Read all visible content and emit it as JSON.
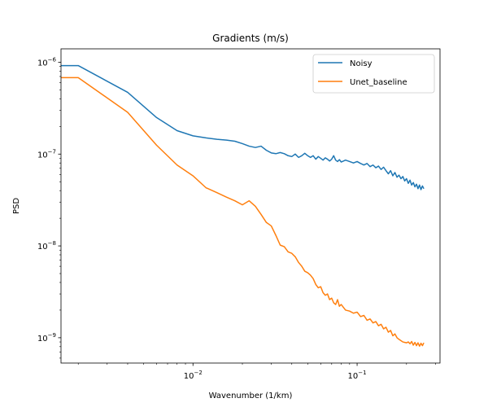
{
  "chart_data": {
    "type": "line",
    "title": "Gradients (m/s)",
    "xlabel": "Wavenumber (1/km)",
    "ylabel": "PSD",
    "xscale": "log",
    "yscale": "log",
    "xlim": [
      0.00157,
      0.32
    ],
    "ylim": [
      5.3e-10,
      1.4e-06
    ],
    "legend": "top-right",
    "grid": false,
    "x_ticks": [
      {
        "value": 0.01,
        "base": "10",
        "exp": "−2"
      },
      {
        "value": 0.1,
        "base": "10",
        "exp": "−1"
      }
    ],
    "y_ticks": [
      {
        "value": 1e-09,
        "base": "10",
        "exp": "−9"
      },
      {
        "value": 1e-08,
        "base": "10",
        "exp": "−8"
      },
      {
        "value": 1e-07,
        "base": "10",
        "exp": "−7"
      },
      {
        "value": 1e-06,
        "base": "10",
        "exp": "−6"
      }
    ],
    "series": [
      {
        "name": "Noisy",
        "color": "#1f77b4",
        "points": [
          [
            0.0015,
            9.2e-07
          ],
          [
            0.002,
            9.2e-07
          ],
          [
            0.004,
            4.7e-07
          ],
          [
            0.006,
            2.5e-07
          ],
          [
            0.008,
            1.8e-07
          ],
          [
            0.01,
            1.58e-07
          ],
          [
            0.012,
            1.5e-07
          ],
          [
            0.014,
            1.45e-07
          ],
          [
            0.016,
            1.42e-07
          ],
          [
            0.018,
            1.38e-07
          ],
          [
            0.02,
            1.3e-07
          ],
          [
            0.022,
            1.22e-07
          ],
          [
            0.024,
            1.18e-07
          ],
          [
            0.026,
            1.22e-07
          ],
          [
            0.028,
            1.1e-07
          ],
          [
            0.03,
            1.03e-07
          ],
          [
            0.032,
            1.01e-07
          ],
          [
            0.034,
            1.04e-07
          ],
          [
            0.036,
            1.01e-07
          ],
          [
            0.038,
            9.6e-08
          ],
          [
            0.04,
            9.4e-08
          ],
          [
            0.042,
            1e-07
          ],
          [
            0.044,
            9.2e-08
          ],
          [
            0.046,
            9.6e-08
          ],
          [
            0.048,
            1.02e-07
          ],
          [
            0.05,
            9.6e-08
          ],
          [
            0.052,
            9.2e-08
          ],
          [
            0.054,
            9.6e-08
          ],
          [
            0.056,
            8.8e-08
          ],
          [
            0.058,
            9.4e-08
          ],
          [
            0.06,
            9e-08
          ],
          [
            0.062,
            8.6e-08
          ],
          [
            0.064,
            9.1e-08
          ],
          [
            0.066,
            8.8e-08
          ],
          [
            0.068,
            8.4e-08
          ],
          [
            0.07,
            8.8e-08
          ],
          [
            0.072,
            9.6e-08
          ],
          [
            0.074,
            8.6e-08
          ],
          [
            0.076,
            8.3e-08
          ],
          [
            0.078,
            8.7e-08
          ],
          [
            0.08,
            8.2e-08
          ],
          [
            0.085,
            8.6e-08
          ],
          [
            0.09,
            8.3e-08
          ],
          [
            0.095,
            8e-08
          ],
          [
            0.1,
            8.3e-08
          ],
          [
            0.105,
            7.9e-08
          ],
          [
            0.11,
            7.6e-08
          ],
          [
            0.115,
            7.9e-08
          ],
          [
            0.12,
            7.3e-08
          ],
          [
            0.125,
            7.6e-08
          ],
          [
            0.13,
            7.1e-08
          ],
          [
            0.135,
            7.4e-08
          ],
          [
            0.14,
            6.8e-08
          ],
          [
            0.145,
            7.2e-08
          ],
          [
            0.15,
            6.6e-08
          ],
          [
            0.155,
            6.1e-08
          ],
          [
            0.16,
            6.6e-08
          ],
          [
            0.165,
            5.8e-08
          ],
          [
            0.17,
            6.3e-08
          ],
          [
            0.175,
            5.6e-08
          ],
          [
            0.18,
            5.9e-08
          ],
          [
            0.185,
            5.4e-08
          ],
          [
            0.19,
            5.7e-08
          ],
          [
            0.195,
            5.1e-08
          ],
          [
            0.2,
            5.4e-08
          ],
          [
            0.205,
            4.8e-08
          ],
          [
            0.21,
            5.2e-08
          ],
          [
            0.215,
            4.6e-08
          ],
          [
            0.22,
            4.9e-08
          ],
          [
            0.225,
            4.4e-08
          ],
          [
            0.23,
            4.7e-08
          ],
          [
            0.235,
            4.2e-08
          ],
          [
            0.24,
            4.6e-08
          ],
          [
            0.245,
            4.1e-08
          ],
          [
            0.25,
            4.5e-08
          ],
          [
            0.255,
            4.2e-08
          ]
        ]
      },
      {
        "name": "Unet_baseline",
        "color": "#ff7f0e",
        "points": [
          [
            0.0015,
            6.8e-07
          ],
          [
            0.002,
            6.8e-07
          ],
          [
            0.004,
            2.85e-07
          ],
          [
            0.006,
            1.25e-07
          ],
          [
            0.008,
            7.6e-08
          ],
          [
            0.01,
            5.8e-08
          ],
          [
            0.012,
            4.3e-08
          ],
          [
            0.014,
            3.8e-08
          ],
          [
            0.016,
            3.4e-08
          ],
          [
            0.018,
            3.1e-08
          ],
          [
            0.02,
            2.8e-08
          ],
          [
            0.022,
            3.1e-08
          ],
          [
            0.024,
            2.7e-08
          ],
          [
            0.026,
            2.2e-08
          ],
          [
            0.028,
            1.8e-08
          ],
          [
            0.03,
            1.65e-08
          ],
          [
            0.032,
            1.3e-08
          ],
          [
            0.034,
            1.02e-08
          ],
          [
            0.036,
            9.8e-09
          ],
          [
            0.038,
            8.6e-09
          ],
          [
            0.04,
            8.3e-09
          ],
          [
            0.042,
            7.6e-09
          ],
          [
            0.044,
            6.6e-09
          ],
          [
            0.046,
            6e-09
          ],
          [
            0.048,
            5.3e-09
          ],
          [
            0.05,
            5.1e-09
          ],
          [
            0.052,
            4.8e-09
          ],
          [
            0.054,
            4.4e-09
          ],
          [
            0.056,
            3.8e-09
          ],
          [
            0.058,
            3.5e-09
          ],
          [
            0.06,
            3.6e-09
          ],
          [
            0.062,
            3.1e-09
          ],
          [
            0.064,
            2.9e-09
          ],
          [
            0.066,
            3e-09
          ],
          [
            0.068,
            2.6e-09
          ],
          [
            0.07,
            2.7e-09
          ],
          [
            0.072,
            2.4e-09
          ],
          [
            0.074,
            2.3e-09
          ],
          [
            0.076,
            2.6e-09
          ],
          [
            0.078,
            2.2e-09
          ],
          [
            0.08,
            2.3e-09
          ],
          [
            0.085,
            2e-09
          ],
          [
            0.09,
            1.95e-09
          ],
          [
            0.095,
            1.85e-09
          ],
          [
            0.1,
            1.9e-09
          ],
          [
            0.105,
            1.7e-09
          ],
          [
            0.11,
            1.75e-09
          ],
          [
            0.115,
            1.55e-09
          ],
          [
            0.12,
            1.6e-09
          ],
          [
            0.125,
            1.45e-09
          ],
          [
            0.13,
            1.5e-09
          ],
          [
            0.135,
            1.35e-09
          ],
          [
            0.14,
            1.4e-09
          ],
          [
            0.145,
            1.25e-09
          ],
          [
            0.15,
            1.3e-09
          ],
          [
            0.155,
            1.15e-09
          ],
          [
            0.16,
            1.2e-09
          ],
          [
            0.165,
            1.05e-09
          ],
          [
            0.17,
            1.1e-09
          ],
          [
            0.175,
            1e-09
          ],
          [
            0.18,
            9.6e-10
          ],
          [
            0.185,
            9.3e-10
          ],
          [
            0.19,
            9e-10
          ],
          [
            0.195,
            8.9e-10
          ],
          [
            0.2,
            8.8e-10
          ],
          [
            0.205,
            9e-10
          ],
          [
            0.21,
            8.6e-10
          ],
          [
            0.215,
            9.1e-10
          ],
          [
            0.22,
            8.3e-10
          ],
          [
            0.225,
            8.9e-10
          ],
          [
            0.23,
            8.2e-10
          ],
          [
            0.235,
            8.8e-10
          ],
          [
            0.24,
            8.1e-10
          ],
          [
            0.245,
            8.7e-10
          ],
          [
            0.25,
            8.2e-10
          ],
          [
            0.255,
            8.8e-10
          ]
        ]
      }
    ]
  }
}
